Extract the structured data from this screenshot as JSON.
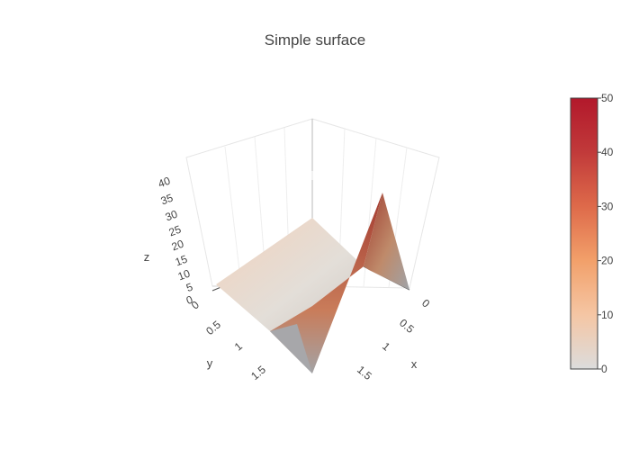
{
  "chart_data": {
    "type": "surface",
    "title": "Simple surface",
    "x": [
      0,
      1,
      2
    ],
    "y": [
      0,
      1,
      2
    ],
    "z": [
      [
        10,
        10.625,
        12.5
      ],
      [
        5.625,
        6.25,
        8.125
      ],
      [
        0,
        0.625,
        2.5
      ]
    ],
    "z_peak": [
      [
        0,
        0,
        0
      ],
      [
        0,
        0,
        40
      ],
      [
        0,
        0,
        0
      ]
    ],
    "axes": {
      "x": {
        "title": "x",
        "ticks": [
          "0",
          "0.5",
          "1",
          "1.5"
        ]
      },
      "y": {
        "title": "y",
        "ticks": [
          "0",
          "0.5",
          "1",
          "1.5"
        ]
      },
      "z": {
        "title": "z",
        "ticks": [
          "0",
          "5",
          "10",
          "15",
          "20",
          "25",
          "30",
          "35",
          "40"
        ]
      }
    },
    "colorbar": {
      "range": [
        0,
        50
      ],
      "ticks": [
        "0",
        "10",
        "20",
        "30",
        "40",
        "50"
      ],
      "colorscale": [
        "#dcdcdc",
        "#f5c6a4",
        "#f2a06a",
        "#de6a4a",
        "#c13a3a",
        "#b2182b"
      ]
    },
    "grid": true,
    "legend": "none"
  }
}
